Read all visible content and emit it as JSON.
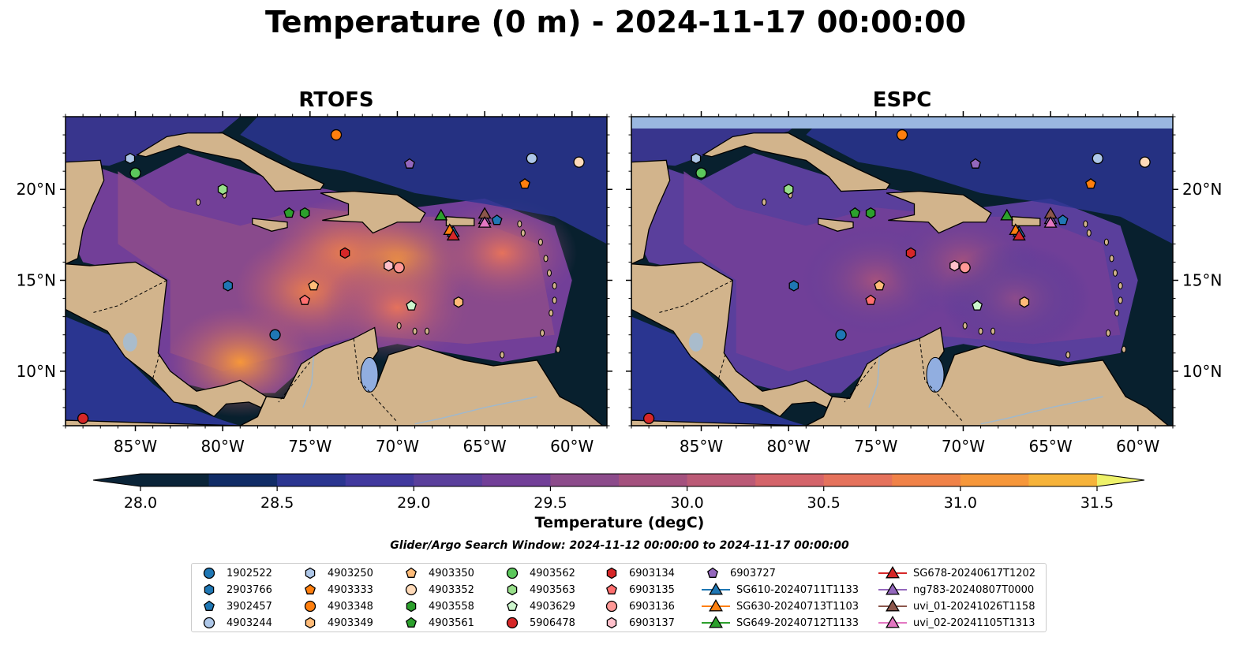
{
  "figure": {
    "title": "Temperature (0 m) - 2024-11-17 00:00:00",
    "search_window": "Glider/Argo Search Window: 2024-11-12 00:00:00 to 2024-11-17 00:00:00"
  },
  "colors": {
    "land": "#d2b48c",
    "ocean_deep": "#08202e",
    "nodata": "#9ab7e0"
  },
  "chart_data": [
    {
      "type": "map",
      "title": "RTOFS",
      "variable": "Temperature (0 m)",
      "lon_range": [
        -89,
        -58
      ],
      "lat_range": [
        7,
        24
      ],
      "xticks": [
        "85°W",
        "80°W",
        "75°W",
        "70°W",
        "65°W",
        "60°W"
      ],
      "yticks": [
        "10°N",
        "15°N",
        "20°N"
      ],
      "warm_regions": [
        {
          "lon": -79,
          "lat": 10.5,
          "temp": 31.0
        },
        {
          "lon": -75,
          "lat": 14.5,
          "temp": 30.8
        },
        {
          "lon": -73,
          "lat": 16.5,
          "temp": 30.8
        },
        {
          "lon": -70,
          "lat": 16.0,
          "temp": 31.0
        },
        {
          "lon": -64,
          "lat": 16.5,
          "temp": 30.5
        },
        {
          "lon": -70,
          "lat": 13.5,
          "temp": 30.5
        }
      ]
    },
    {
      "type": "map",
      "title": "ESPC",
      "variable": "Temperature (0 m)",
      "lon_range": [
        -89,
        -58
      ],
      "lat_range": [
        7,
        24
      ],
      "xticks": [
        "85°W",
        "80°W",
        "75°W",
        "70°W",
        "65°W",
        "60°W"
      ],
      "yticks": [
        "10°N",
        "15°N",
        "20°N"
      ],
      "warm_regions": [
        {
          "lon": -75,
          "lat": 15.0,
          "temp": 29.8
        },
        {
          "lon": -70,
          "lat": 16.0,
          "temp": 29.9
        },
        {
          "lon": -67,
          "lat": 14.0,
          "temp": 29.7
        }
      ]
    }
  ],
  "colorbar": {
    "label": "Temperature (degC)",
    "min": 28.0,
    "max": 31.5,
    "step": 0.25,
    "ticks": [
      "28.0",
      "28.5",
      "29.0",
      "29.5",
      "30.0",
      "30.5",
      "31.0",
      "31.5"
    ],
    "colors": [
      "#0a2438",
      "#102c66",
      "#2a3590",
      "#41399e",
      "#5a3f9c",
      "#723f98",
      "#8c4b8b",
      "#a4517e",
      "#bb5a76",
      "#d4646a",
      "#e5725c",
      "#f08248",
      "#f6973a",
      "#f6b33a",
      "#f3d14a",
      "#eef26a"
    ]
  },
  "floats": [
    {
      "id": "1902522",
      "marker": "circle",
      "color": "#1f77b4",
      "lon": -77.0,
      "lat": 12.0
    },
    {
      "id": "2903766",
      "marker": "hexagon",
      "color": "#1f77b4",
      "lon": -79.7,
      "lat": 14.7
    },
    {
      "id": "3902457",
      "marker": "pentagon",
      "color": "#1f77b4",
      "lon": -64.3,
      "lat": 18.3
    },
    {
      "id": "4903244",
      "marker": "circle",
      "color": "#aec7e8",
      "lon": -62.3,
      "lat": 21.7
    },
    {
      "id": "4903250",
      "marker": "hexagon",
      "color": "#aec7e8",
      "lon": -85.3,
      "lat": 21.7
    },
    {
      "id": "4903333",
      "marker": "pentagon",
      "color": "#ff7f0e",
      "lon": -62.7,
      "lat": 20.3
    },
    {
      "id": "4903348",
      "marker": "circle",
      "color": "#ff7f0e",
      "lon": -73.5,
      "lat": 23.0
    },
    {
      "id": "4903349",
      "marker": "hexagon",
      "color": "#ffbb78",
      "lon": -66.5,
      "lat": 13.8
    },
    {
      "id": "4903350",
      "marker": "pentagon",
      "color": "#ffbb78",
      "lon": -74.8,
      "lat": 14.7
    },
    {
      "id": "4903352",
      "marker": "circle",
      "color": "#ffdab9",
      "lon": -59.6,
      "lat": 21.5
    },
    {
      "id": "4903558",
      "marker": "hexagon",
      "color": "#2ca02c",
      "lon": -75.3,
      "lat": 18.7
    },
    {
      "id": "4903561",
      "marker": "pentagon",
      "color": "#2ca02c",
      "lon": -76.2,
      "lat": 18.7
    },
    {
      "id": "4903562",
      "marker": "circle",
      "color": "#5cc85c",
      "lon": -85.0,
      "lat": 20.9
    },
    {
      "id": "4903563",
      "marker": "hexagon",
      "color": "#98df8a",
      "lon": -80.0,
      "lat": 20.0
    },
    {
      "id": "4903629",
      "marker": "pentagon",
      "color": "#ccf5cc",
      "lon": -69.2,
      "lat": 13.6
    },
    {
      "id": "5906478",
      "marker": "circle",
      "color": "#d62728",
      "lon": -88.0,
      "lat": 7.4
    },
    {
      "id": "6903134",
      "marker": "hexagon",
      "color": "#d62728",
      "lon": -73.0,
      "lat": 16.5
    },
    {
      "id": "6903135",
      "marker": "pentagon",
      "color": "#ff6f6f",
      "lon": -75.3,
      "lat": 13.9
    },
    {
      "id": "6903136",
      "marker": "circle",
      "color": "#ff9896",
      "lon": -69.9,
      "lat": 15.7
    },
    {
      "id": "6903137",
      "marker": "hexagon",
      "color": "#ffc0cb",
      "lon": -70.5,
      "lat": 15.8
    },
    {
      "id": "6903727",
      "marker": "pentagon",
      "color": "#9467bd",
      "lon": -69.3,
      "lat": 21.4
    }
  ],
  "gliders": [
    {
      "id": "SG610-20240711T1133",
      "color": "#1f77b4",
      "lon": -66.8,
      "lat": 17.7
    },
    {
      "id": "SG630-20240713T1103",
      "color": "#ff7f0e",
      "lon": -67.0,
      "lat": 17.8
    },
    {
      "id": "SG649-20240712T1133",
      "color": "#2ca02c",
      "lon": -67.5,
      "lat": 18.6
    },
    {
      "id": "SG678-20240617T1202",
      "color": "#d62728",
      "lon": -66.8,
      "lat": 17.5
    },
    {
      "id": "ng783-20240807T0000",
      "color": "#9467bd",
      "lon": -65.0,
      "lat": 18.4
    },
    {
      "id": "uvi_01-20241026T1158",
      "color": "#8c564b",
      "lon": -65.0,
      "lat": 18.7
    },
    {
      "id": "uvi_02-20241105T1313",
      "color": "#e377c2",
      "lon": -65.0,
      "lat": 18.2
    }
  ]
}
